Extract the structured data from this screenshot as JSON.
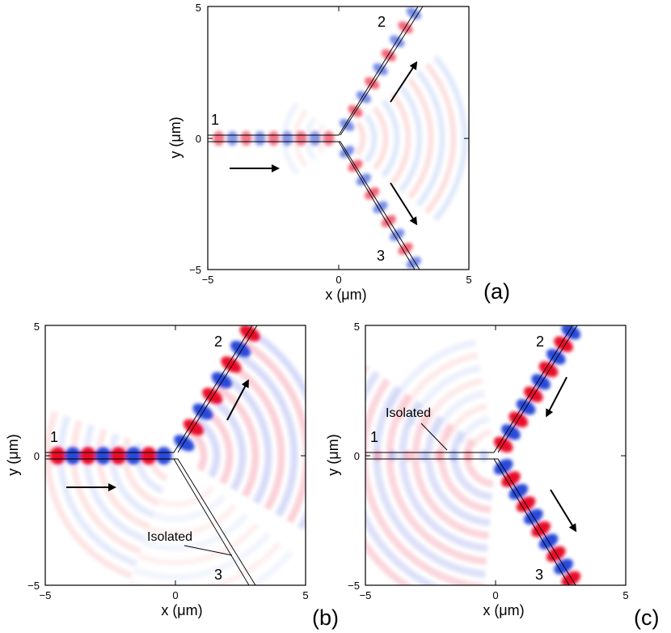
{
  "colors": {
    "positive": "#e8001c",
    "negative": "#1f3fd6",
    "waveguide": "#000000",
    "arrow": "#000000"
  },
  "axis_ticks": {
    "x": [
      "−5",
      "0",
      "5"
    ],
    "y": [
      "5",
      "0",
      "−5"
    ]
  },
  "axis_labels": {
    "x": "x (μm)",
    "y": "y (μm)"
  },
  "ports": {
    "p1": "1",
    "p2": "2",
    "p3": "3"
  },
  "panels": [
    {
      "tag": "(a)",
      "annotation": ""
    },
    {
      "tag": "(b)",
      "annotation": "Isolated"
    },
    {
      "tag": "(c)",
      "annotation": "Isolated"
    }
  ]
}
